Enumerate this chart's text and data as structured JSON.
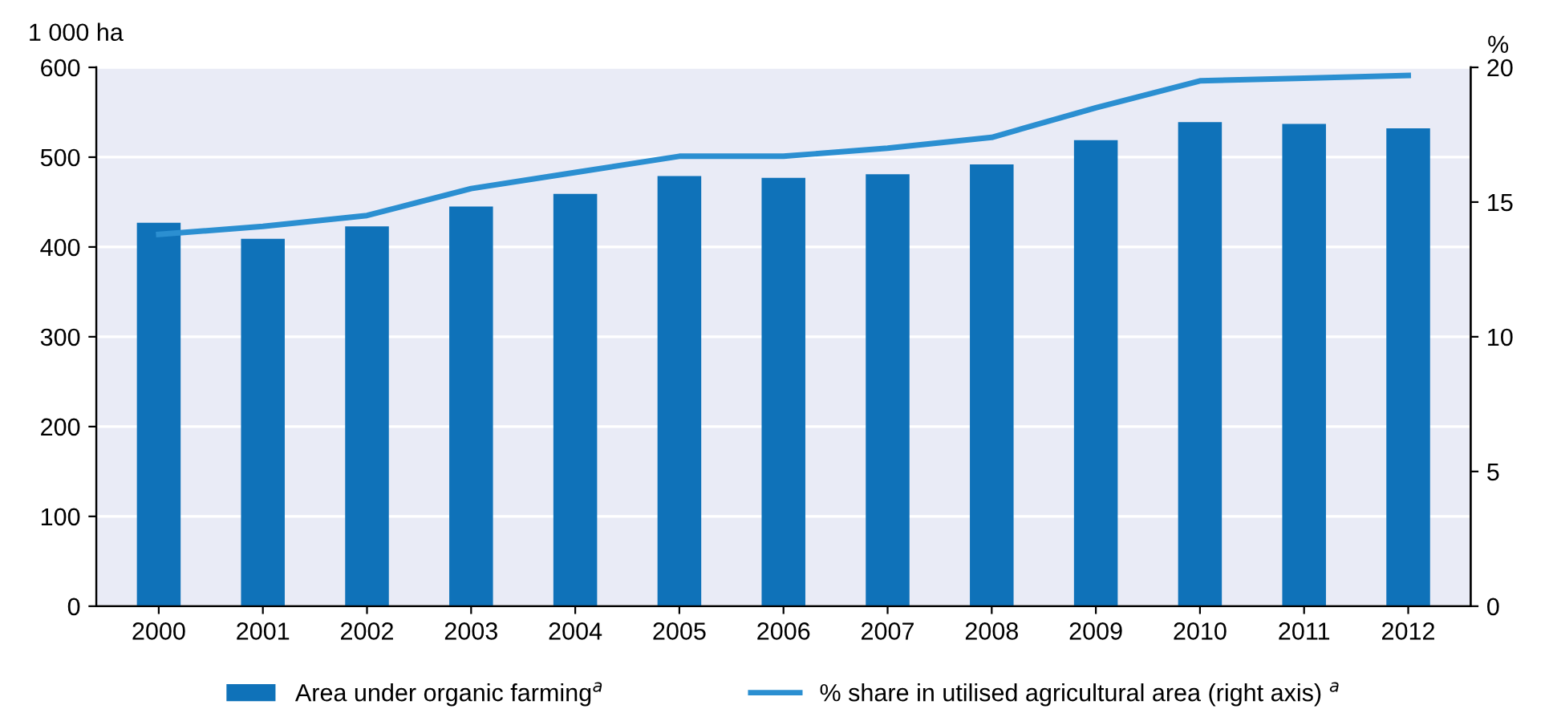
{
  "chart_data": {
    "type": "bar",
    "categories": [
      "2000",
      "2001",
      "2002",
      "2003",
      "2004",
      "2005",
      "2006",
      "2007",
      "2008",
      "2009",
      "2010",
      "2011",
      "2012"
    ],
    "ylabel": "1 000 ha",
    "y2label": "%",
    "series": [
      {
        "name": "Area under organic farming$^{a}$",
        "color": "#0f72b9",
        "values": [
          427,
          409,
          423,
          445,
          459,
          479,
          477,
          481,
          492,
          519,
          539,
          537,
          532
        ]
      },
      {
        "name": "% share in utilised agricultural area (right axis) $^{a}$",
        "type": "line",
        "axis": "y2",
        "color": "#2b8fd1",
        "values": [
          13.8,
          14.1,
          14.5,
          15.5,
          16.1,
          16.7,
          16.7,
          17.0,
          17.4,
          18.5,
          19.5,
          19.6,
          19.7
        ]
      }
    ],
    "ylim": [
      0,
      600
    ],
    "yticks": [
      0,
      100,
      200,
      300,
      400,
      500,
      600
    ],
    "y2lim": [
      0,
      20
    ],
    "y2ticks": [
      0,
      5,
      10,
      15,
      20
    ],
    "grid": "y",
    "legend": "bottom",
    "marker": "none",
    "line_style": "solid"
  }
}
